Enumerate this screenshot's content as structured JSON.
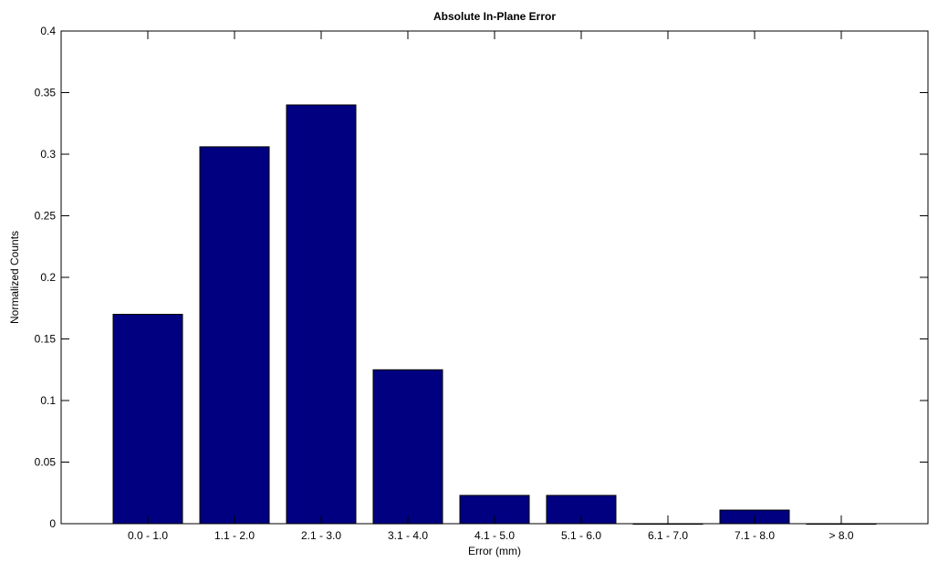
{
  "chart_data": {
    "type": "bar",
    "title": "Absolute In-Plane Error",
    "xlabel": "Error (mm)",
    "ylabel": "Normalized Counts",
    "categories": [
      "0.0 - 1.0",
      "1.1 - 2.0",
      "2.1 - 3.0",
      "3.1 - 4.0",
      "4.1 - 5.0",
      "5.1 - 6.0",
      "6.1 - 7.0",
      "7.1 - 8.0",
      "> 8.0"
    ],
    "values": [
      0.17,
      0.306,
      0.34,
      0.125,
      0.023,
      0.023,
      0.0,
      0.011,
      0.0
    ],
    "ylim": [
      0,
      0.4
    ],
    "yticks": [
      "0",
      "0.05",
      "0.1",
      "0.15",
      "0.2",
      "0.25",
      "0.3",
      "0.35",
      "0.4"
    ],
    "bar_color": "#000080",
    "grid": false,
    "legend": "none"
  }
}
